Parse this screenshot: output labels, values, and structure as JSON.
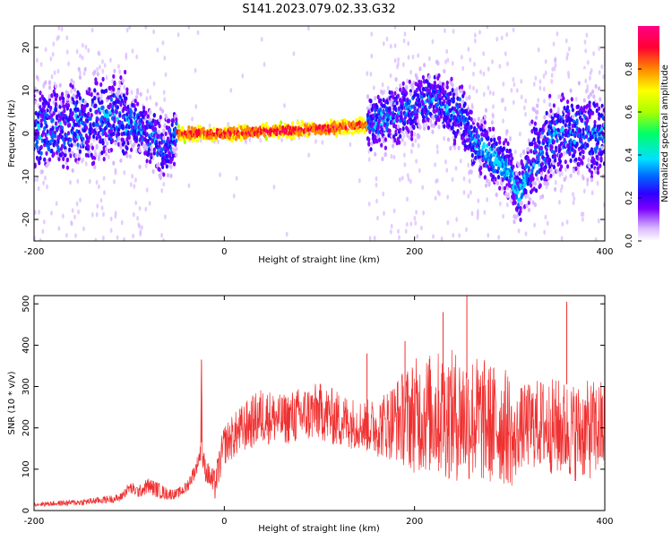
{
  "figure_title": "S141.2023.079.02.33.G32",
  "chart_data": [
    {
      "type": "heatmap",
      "xlabel": "Height of straight line (km)",
      "ylabel": "Frequency (Hz)",
      "xlim": [
        -200,
        400
      ],
      "ylim": [
        -25,
        25
      ],
      "xticks": [
        -200,
        0,
        200,
        400
      ],
      "yticks": [
        -20,
        -10,
        0,
        10,
        20
      ],
      "colorbar": {
        "label": "Normalized spectral amplitude",
        "range": [
          0,
          1
        ],
        "ticks": [
          0.0,
          0.2,
          0.4,
          0.6,
          0.8
        ],
        "tick_labels": [
          "0.0",
          "0.2",
          "0.4",
          "0.6",
          "0.8"
        ],
        "colormap": [
          "#ffffff",
          "#d8b8ff",
          "#7a00ff",
          "#2e00ff",
          "#0066ff",
          "#00e0ff",
          "#00ff66",
          "#aaff00",
          "#ffff00",
          "#ff8800",
          "#ff0033",
          "#ff0088"
        ]
      },
      "ridge": {
        "x": [
          -200,
          -150,
          -120,
          -100,
          -80,
          -60,
          -50,
          0,
          50,
          100,
          150,
          180,
          200,
          220,
          250,
          260,
          280,
          300,
          310,
          320,
          350,
          400
        ],
        "y": [
          0,
          2,
          4,
          3,
          0,
          -4,
          0,
          0,
          0.5,
          1,
          2,
          4,
          6,
          8,
          4,
          -1,
          -5,
          -9,
          -15,
          -8,
          0,
          0
        ]
      }
    },
    {
      "type": "line",
      "xlabel": "Height of straight line (km)",
      "ylabel": "SNR (10 * v/v)",
      "xlim": [
        -200,
        400
      ],
      "ylim": [
        0,
        520
      ],
      "xticks": [
        -200,
        0,
        200,
        400
      ],
      "yticks": [
        0,
        100,
        200,
        300,
        400,
        500
      ],
      "color": "#f03030",
      "series": [
        {
          "x": [
            -200,
            -150,
            -110,
            -100,
            -90,
            -80,
            -70,
            -60,
            -50,
            -40,
            -30,
            -25,
            -24,
            -23,
            -20,
            -15,
            -10,
            0,
            20,
            40,
            60,
            80,
            100,
            120,
            140,
            160,
            180,
            200,
            220,
            240,
            260,
            280,
            300,
            304,
            310,
            330,
            350,
            370,
            400
          ],
          "y": [
            15,
            20,
            30,
            55,
            45,
            60,
            50,
            40,
            40,
            55,
            100,
            140,
            365,
            130,
            100,
            80,
            60,
            160,
            200,
            230,
            220,
            230,
            240,
            220,
            210,
            200,
            220,
            230,
            235,
            230,
            225,
            210,
            200,
            150,
            200,
            210,
            200,
            190,
            200
          ],
          "spread": [
            5,
            8,
            10,
            15,
            15,
            20,
            20,
            15,
            12,
            15,
            20,
            20,
            0,
            30,
            30,
            30,
            40,
            50,
            60,
            70,
            60,
            70,
            70,
            70,
            60,
            70,
            100,
            140,
            150,
            160,
            160,
            150,
            140,
            100,
            100,
            110,
            120,
            120,
            120
          ],
          "peaks": [
            [
              -24,
              365
            ],
            [
              255,
              520
            ],
            [
              230,
              480
            ],
            [
              360,
              505
            ],
            [
              150,
              380
            ],
            [
              190,
              410
            ]
          ]
        }
      ]
    }
  ]
}
